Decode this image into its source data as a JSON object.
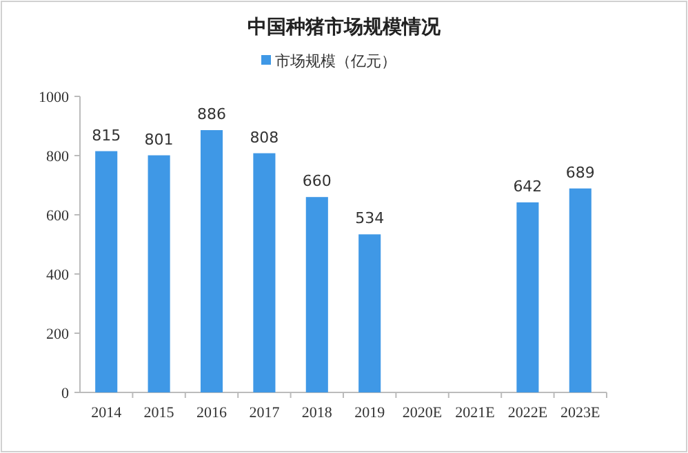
{
  "chart_data": {
    "type": "bar",
    "title": "中国种猪市场规模情况",
    "categories": [
      "2014",
      "2015",
      "2016",
      "2017",
      "2018",
      "2019",
      "2020E",
      "2021E",
      "2022E",
      "2023E"
    ],
    "series": [
      {
        "name": "市场规模（亿元）",
        "color": "#3f98e6",
        "values": [
          815,
          801,
          886,
          808,
          660,
          534,
          null,
          null,
          642,
          689
        ],
        "value_labels": [
          "815",
          "801",
          "886",
          "808",
          "660",
          "534",
          null,
          null,
          "642",
          "689"
        ]
      }
    ],
    "ylim": [
      0,
      1000
    ],
    "yticks": [
      0,
      200,
      400,
      600,
      800,
      1000
    ],
    "legend": "top",
    "grid": false
  }
}
